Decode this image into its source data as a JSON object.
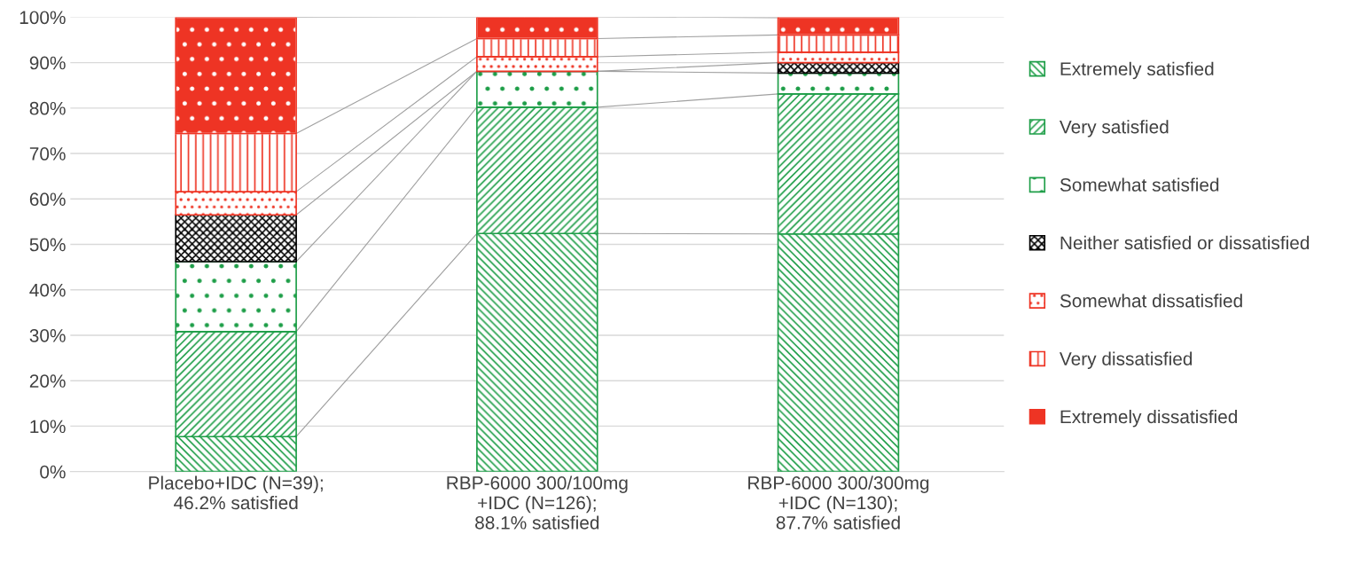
{
  "chart_data": {
    "type": "bar",
    "stacked": true,
    "categories": [
      "Placebo+IDC (N=39);\n46.2% satisfied",
      "RBP-6000 300/100mg\n+IDC (N=126);\n88.1% satisfied",
      "RBP-6000 300/300mg\n+IDC (N=130);\n87.7% satisfied"
    ],
    "series": [
      {
        "name": "Extremely satisfied",
        "color": "#1e9e48",
        "values": [
          7.7,
          52.4,
          52.3
        ]
      },
      {
        "name": "Very satisfied",
        "color": "#1e9e48",
        "values": [
          23.1,
          27.8,
          30.8
        ]
      },
      {
        "name": "Somewhat satisfied",
        "color": "#1e9e48",
        "values": [
          15.4,
          7.9,
          4.6
        ]
      },
      {
        "name": "Neither satisfied or dissatisfied",
        "color": "#000000",
        "values": [
          10.3,
          0,
          2.3
        ]
      },
      {
        "name": "Somewhat dissatisfied",
        "color": "#ee3424",
        "values": [
          5.1,
          3.2,
          2.3
        ]
      },
      {
        "name": "Very dissatisfied",
        "color": "#ee3424",
        "values": [
          12.8,
          4.0,
          3.8
        ]
      },
      {
        "name": "Extremely dissatisfied",
        "color": "#ee3424",
        "values": [
          25.6,
          4.8,
          3.8
        ]
      }
    ],
    "ylim": [
      0,
      100
    ],
    "yticks": [
      {
        "value": 0,
        "label": "0%"
      },
      {
        "value": 10,
        "label": "10%"
      },
      {
        "value": 20,
        "label": "20%"
      },
      {
        "value": 30,
        "label": "30%"
      },
      {
        "value": 40,
        "label": "40%"
      },
      {
        "value": 50,
        "label": "50%"
      },
      {
        "value": 60,
        "label": "60%"
      },
      {
        "value": 70,
        "label": "70%"
      },
      {
        "value": 80,
        "label": "80%"
      },
      {
        "value": 90,
        "label": "90%"
      },
      {
        "value": 100,
        "label": "100%"
      }
    ],
    "grid": "y",
    "legend": "right"
  }
}
